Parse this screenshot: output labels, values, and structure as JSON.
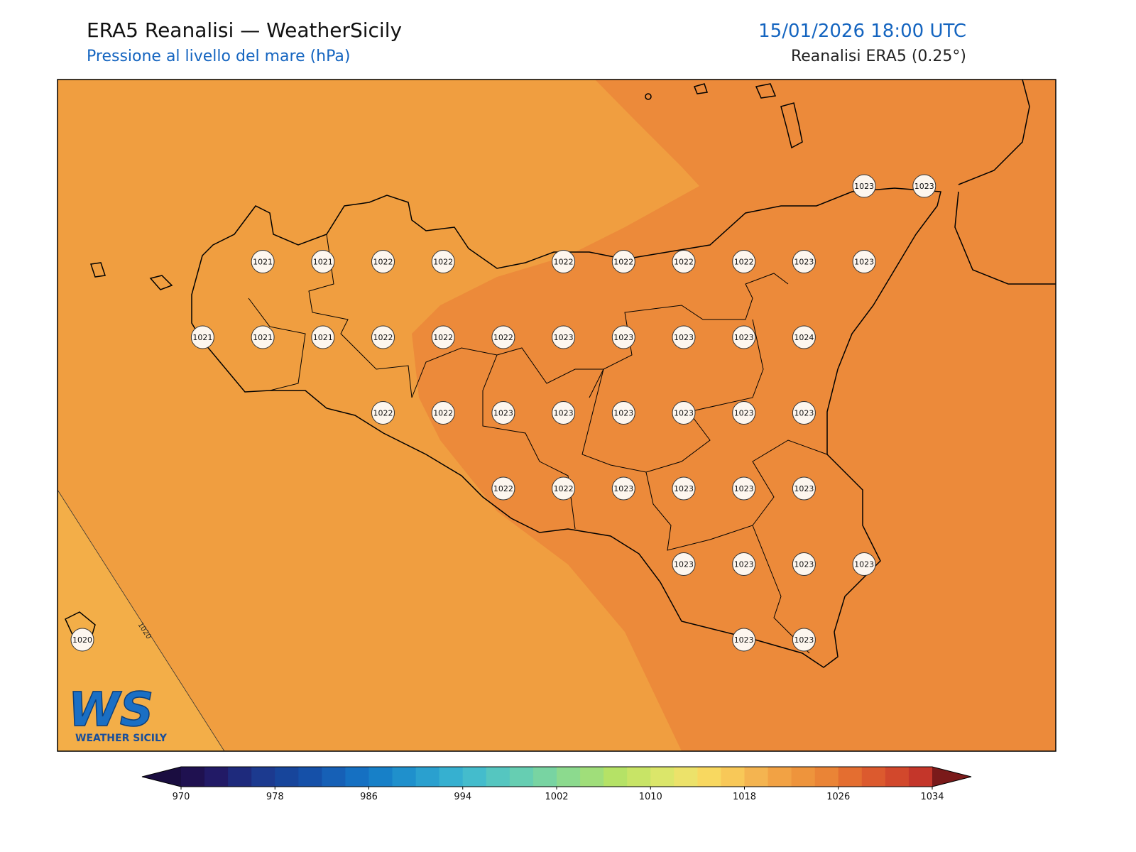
{
  "header": {
    "title": "ERA5 Reanalisi — WeatherSicily",
    "subtitle": "Pressione al livello del mare (hPa)",
    "datetime": "15/01/2026 18:00 UTC",
    "source": "Reanalisi ERA5 (0.25°)"
  },
  "stations": {
    "rows": [
      [
        null,
        null,
        null,
        null,
        null,
        null,
        null,
        null,
        null,
        null,
        null,
        null,
        null,
        1023,
        1023
      ],
      [
        null,
        null,
        null,
        1021,
        1021,
        1022,
        1022,
        null,
        1022,
        1022,
        1022,
        1022,
        1023,
        1023,
        null
      ],
      [
        null,
        null,
        1021,
        1021,
        1021,
        1022,
        1022,
        1022,
        1023,
        1023,
        1023,
        1023,
        1024,
        null,
        null
      ],
      [
        null,
        null,
        null,
        null,
        null,
        1022,
        1022,
        1023,
        1023,
        1023,
        1023,
        1023,
        1023,
        null,
        null
      ],
      [
        null,
        null,
        null,
        null,
        null,
        null,
        null,
        1022,
        1022,
        1023,
        1023,
        1023,
        1023,
        null,
        null
      ],
      [
        null,
        null,
        null,
        null,
        null,
        null,
        null,
        null,
        null,
        null,
        1023,
        1023,
        1023,
        1023,
        null
      ],
      [
        1020,
        null,
        null,
        null,
        null,
        null,
        null,
        null,
        null,
        null,
        null,
        1023,
        1023,
        null,
        null
      ]
    ]
  },
  "contour_labels": [
    1020
  ],
  "colorbar": {
    "range": [
      970,
      1034
    ],
    "ticks": [
      970,
      978,
      986,
      994,
      1002,
      1010,
      1018,
      1026,
      1034
    ],
    "colors": [
      "#1f1150",
      "#221a66",
      "#1e2a7c",
      "#1c3a8f",
      "#17459b",
      "#1550a8",
      "#1660b6",
      "#1570c2",
      "#1780c8",
      "#1f90cc",
      "#2aa0cf",
      "#36b0d0",
      "#44bccc",
      "#55c6c0",
      "#66ceb2",
      "#78d4a2",
      "#8cda8e",
      "#a0de7a",
      "#b5e266",
      "#c8e466",
      "#dbe66a",
      "#ece26a",
      "#f8d860",
      "#f8c858",
      "#f4b450",
      "#f2a244",
      "#ee943c",
      "#ea8436",
      "#e46e30",
      "#dc5a2e",
      "#d2482c",
      "#c4362a"
    ],
    "under_color": "#1a0d40",
    "over_color": "#7a1a1a"
  },
  "logo": {
    "text": "WS",
    "subtext": "WEATHER SICILY"
  }
}
